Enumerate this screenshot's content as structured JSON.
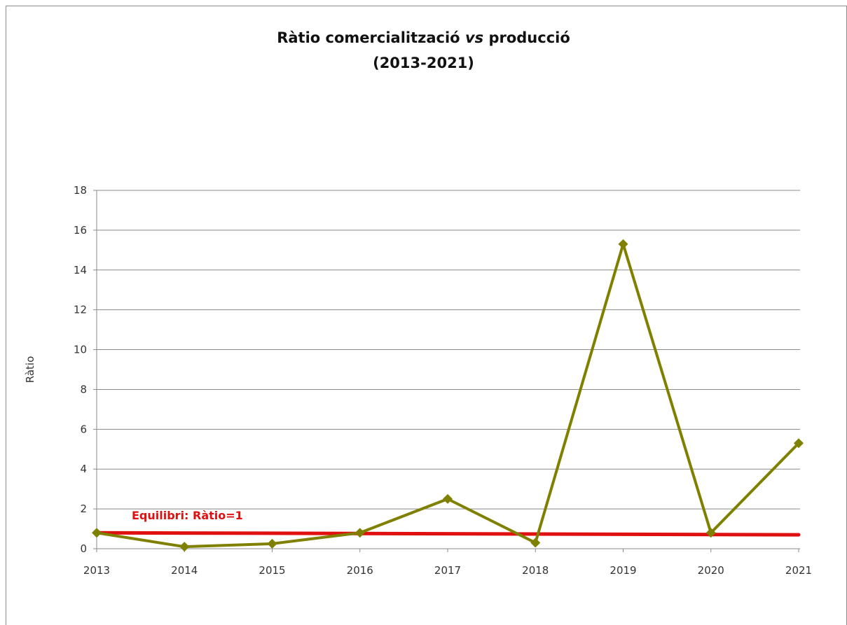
{
  "chart_data": {
    "type": "line",
    "title_main": "Ràtio comercialització ",
    "title_italic": "vs",
    "title_end": " producció",
    "subtitle": "(2013-2021)",
    "xlabel": "",
    "ylabel": "Ràtio",
    "x": [
      "2013",
      "2014",
      "2015",
      "2016",
      "2017",
      "2018",
      "2019",
      "2020",
      "2021"
    ],
    "ylim": [
      0,
      18
    ],
    "yticks": [
      "0",
      "2",
      "4",
      "6",
      "8",
      "10",
      "12",
      "14",
      "16",
      "18"
    ],
    "grid": true,
    "series": [
      {
        "values": [
          0.8,
          0.1,
          0.25,
          0.8,
          2.5,
          0.3,
          15.3,
          0.8,
          5.3
        ],
        "color": "#808000",
        "marker": "diamond"
      }
    ],
    "reference_line": {
      "label": "Equilibri: Ràtio=1",
      "start": 0.8,
      "end": 0.7,
      "color": "#e01010"
    }
  }
}
